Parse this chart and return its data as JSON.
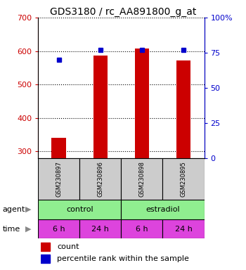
{
  "title": "GDS3180 / rc_AA891800_g_at",
  "samples": [
    "GSM230897",
    "GSM230896",
    "GSM230898",
    "GSM230895"
  ],
  "counts": [
    340,
    587,
    608,
    572
  ],
  "percentiles": [
    70,
    77,
    77,
    77
  ],
  "ylim_left": [
    280,
    700
  ],
  "ylim_right": [
    0,
    100
  ],
  "yticks_left": [
    300,
    400,
    500,
    600,
    700
  ],
  "yticks_right": [
    0,
    25,
    50,
    75,
    100
  ],
  "bar_color": "#cc0000",
  "dot_color": "#0000cc",
  "bar_width": 0.35,
  "agent_labels": [
    "control",
    "estradiol"
  ],
  "agent_color": "#90ee90",
  "time_labels": [
    "6 h",
    "24 h",
    "6 h",
    "24 h"
  ],
  "time_color": "#dd44dd",
  "sample_box_color": "#cccccc",
  "left_tick_color": "#cc0000",
  "right_tick_color": "#0000cc",
  "legend_count_label": "count",
  "legend_pct_label": "percentile rank within the sample",
  "fig_width": 3.5,
  "fig_height": 3.84,
  "dpi": 100
}
